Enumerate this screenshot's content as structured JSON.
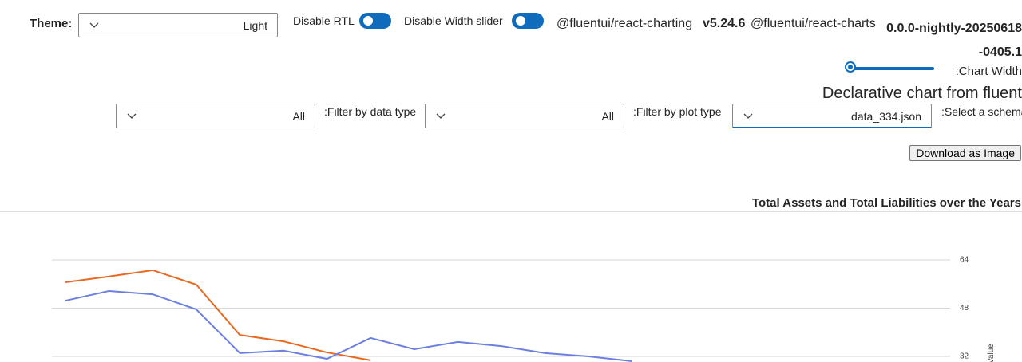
{
  "controls": {
    "theme_label": "Theme:",
    "theme_value": "Light",
    "rtl_label": "Disable RTL",
    "width_slider_label": "Disable Width slider",
    "pkg1_name": "@fluentui/react-charting",
    "pkg1_version": "v5.24.6",
    "pkg2_name": "@fluentui/react-charts",
    "pkg2_version": "0.0.0-nightly-20250618-0405.1",
    "chart_width_label": ":Chart Width",
    "heading": "Declarative chart from fluent",
    "data_type_value": "All",
    "data_type_label": ":Filter by data type",
    "plot_type_value": "All",
    "plot_type_label": ":Filter by plot type",
    "schema_value": "data_334.json",
    "schema_label": ":Select a schema",
    "download_button": "Download as Image"
  },
  "chart_data": {
    "type": "line",
    "title": "Total Assets and Total Liabilities over the Years",
    "y_label": "Value",
    "ylim": [
      16,
      72
    ],
    "yticks": [
      32,
      48,
      64
    ],
    "grid": true,
    "series": [
      {
        "color": "#e8681f",
        "values": [
          56.6,
          58.5,
          60.6,
          55.8,
          39.1,
          37.0,
          33.3,
          30.7
        ]
      },
      {
        "color": "#6b80e0",
        "values": [
          50.5,
          53.7,
          52.6,
          47.6,
          33.1,
          33.9,
          31.2,
          38.1,
          34.4,
          36.8,
          35.4,
          33.1,
          32.0,
          30.4
        ]
      }
    ]
  }
}
